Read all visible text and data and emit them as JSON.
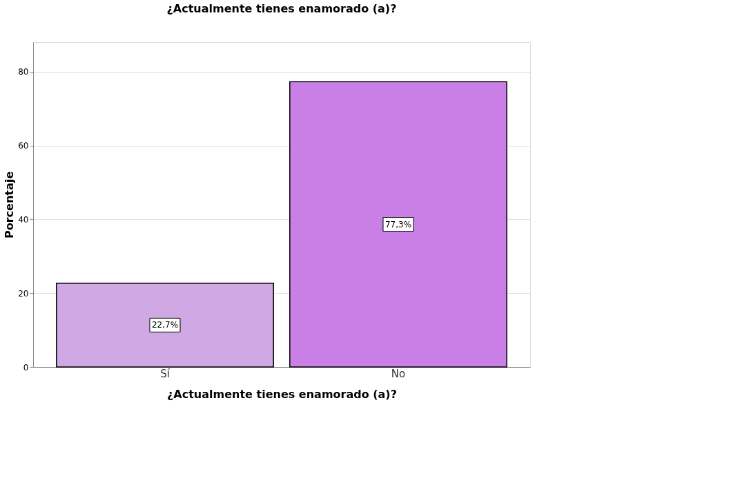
{
  "chart_data": {
    "type": "bar",
    "title": "¿Actualmente tienes enamorado (a)?",
    "xlabel": "¿Actualmente tienes enamorado (a)?",
    "ylabel": "Porcentaje",
    "categories": [
      "Sí",
      "No"
    ],
    "values": [
      22.7,
      77.3
    ],
    "colors": [
      "#cfa8e4",
      "#c97fe6"
    ],
    "value_labels": [
      "22,7%",
      "77,3%"
    ],
    "ylim": [
      0,
      88
    ],
    "yticks": [
      0,
      20,
      40,
      60,
      80
    ],
    "grid": "y"
  }
}
